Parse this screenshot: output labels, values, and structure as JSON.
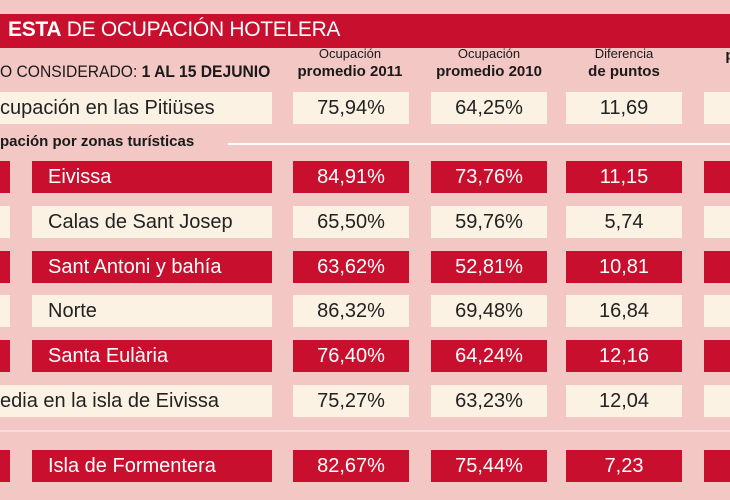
{
  "header": {
    "title_bold": "ESTA",
    "title_rest": " DE OCUPACIÓN HOTELERA",
    "period_label": "O CONSIDERADO: ",
    "period_value": "1 AL 15 DEJUNIO"
  },
  "columns": [
    {
      "top": "Ocupación",
      "bottom": "promedio 2011"
    },
    {
      "top": "Ocupación",
      "bottom": "promedio 2010"
    },
    {
      "top": "Diferencia",
      "bottom": "de puntos"
    },
    {
      "top": "",
      "bottom": "p"
    }
  ],
  "section_title": "pación por zonas turísticas",
  "colors": {
    "red": "#c8102e",
    "cream": "#fbf2e4",
    "background": "#f2c7c4"
  },
  "chart_data": {
    "type": "table",
    "title": "ESTA DE OCUPACIÓN HOTELERA",
    "headers": [
      "",
      "Ocupación promedio 2011",
      "Ocupación promedio 2010",
      "Diferencia de puntos"
    ],
    "rows": [
      {
        "label": "cupación en las Pitiüses",
        "v2011": "75,94%",
        "v2010": "64,25%",
        "diff": "11,69",
        "style": "light"
      },
      {
        "label": "Eivissa",
        "v2011": "84,91%",
        "v2010": "73,76%",
        "diff": "11,15",
        "style": "red"
      },
      {
        "label": "Calas de Sant Josep",
        "v2011": "65,50%",
        "v2010": "59,76%",
        "diff": "5,74",
        "style": "light"
      },
      {
        "label": "Sant Antoni y bahía",
        "v2011": "63,62%",
        "v2010": "52,81%",
        "diff": "10,81",
        "style": "red"
      },
      {
        "label": "Norte",
        "v2011": "86,32%",
        "v2010": "69,48%",
        "diff": "16,84",
        "style": "light"
      },
      {
        "label": "Santa Eulària",
        "v2011": "76,40%",
        "v2010": "64,24%",
        "diff": "12,16",
        "style": "red"
      },
      {
        "label": "edia en la isla de Eivissa",
        "v2011": "75,27%",
        "v2010": "63,23%",
        "diff": "12,04",
        "style": "light"
      },
      {
        "label": "Isla de Formentera",
        "v2011": "82,67%",
        "v2010": "75,44%",
        "diff": "7,23",
        "style": "red"
      }
    ]
  }
}
